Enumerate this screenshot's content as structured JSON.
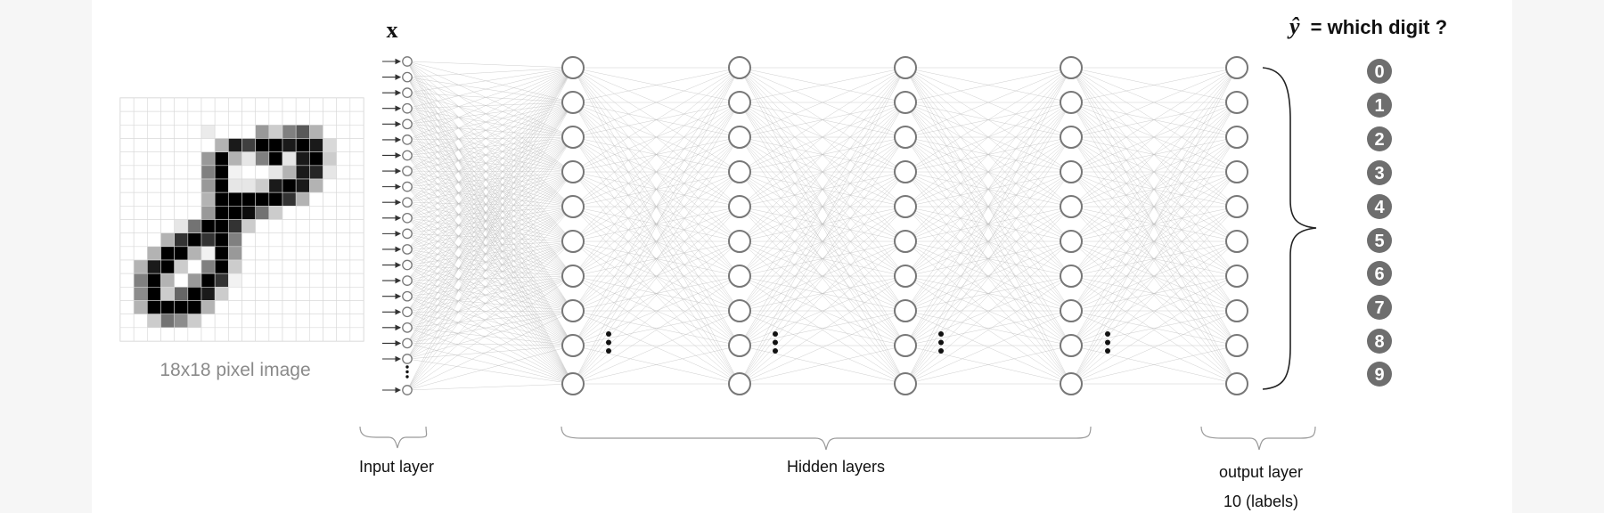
{
  "input_symbol": "x",
  "output_title": {
    "symbol": "ŷ",
    "text": "= which digit ?"
  },
  "image": {
    "caption": "18x18 pixel image",
    "grid_size": 18,
    "pixels": [
      [
        0,
        0,
        0,
        0,
        0,
        0,
        0,
        0,
        0,
        0,
        0,
        0,
        0,
        0,
        0,
        0,
        0,
        0
      ],
      [
        0,
        0,
        0,
        0,
        0,
        0,
        0,
        0,
        0,
        0,
        0,
        0,
        0,
        0,
        0,
        0,
        0,
        0
      ],
      [
        0,
        0,
        0,
        0,
        0,
        0,
        0.08,
        0,
        0,
        0,
        0.4,
        0.2,
        0.5,
        0.65,
        0.3,
        0,
        0,
        0
      ],
      [
        0,
        0,
        0,
        0,
        0,
        0,
        0,
        0.3,
        0.9,
        0.75,
        1,
        1,
        0.9,
        1,
        0.9,
        0.15,
        0,
        0
      ],
      [
        0,
        0,
        0,
        0,
        0,
        0,
        0.4,
        1,
        0.3,
        0.1,
        0.5,
        1,
        0.1,
        0.9,
        1,
        0.2,
        0,
        0
      ],
      [
        0,
        0,
        0,
        0,
        0,
        0,
        0.5,
        1,
        0.05,
        0,
        0,
        0.1,
        0.3,
        0.9,
        0.85,
        0.1,
        0,
        0
      ],
      [
        0,
        0,
        0,
        0,
        0,
        0,
        0.4,
        1,
        0.1,
        0.1,
        0.2,
        0.9,
        1,
        0.9,
        0.3,
        0,
        0,
        0
      ],
      [
        0,
        0,
        0,
        0,
        0,
        0,
        0.3,
        1,
        1,
        1,
        1,
        1,
        0.8,
        0.3,
        0,
        0,
        0,
        0
      ],
      [
        0,
        0,
        0,
        0,
        0,
        0,
        0.4,
        1,
        1,
        0.95,
        0.55,
        0.2,
        0,
        0,
        0,
        0,
        0,
        0
      ],
      [
        0,
        0,
        0,
        0,
        0.1,
        0.55,
        1,
        1,
        0.8,
        0.2,
        0,
        0,
        0,
        0,
        0,
        0,
        0,
        0
      ],
      [
        0,
        0,
        0,
        0.3,
        0.8,
        1,
        0.8,
        1,
        0.5,
        0,
        0,
        0,
        0,
        0,
        0,
        0,
        0,
        0
      ],
      [
        0,
        0,
        0.3,
        1,
        1,
        0.3,
        0.05,
        1,
        0.4,
        0,
        0,
        0,
        0,
        0,
        0,
        0,
        0,
        0
      ],
      [
        0,
        0.3,
        0.9,
        1,
        0.2,
        0,
        0.5,
        1,
        0.2,
        0,
        0,
        0,
        0,
        0,
        0,
        0,
        0,
        0
      ],
      [
        0,
        0.5,
        1,
        0.3,
        0,
        0.4,
        1,
        0.8,
        0.05,
        0,
        0,
        0,
        0,
        0,
        0,
        0,
        0,
        0
      ],
      [
        0,
        0.45,
        1,
        0.2,
        0.6,
        1,
        0.9,
        0.2,
        0,
        0,
        0,
        0,
        0,
        0,
        0,
        0,
        0,
        0
      ],
      [
        0,
        0.3,
        1,
        1,
        1,
        1,
        0.3,
        0,
        0,
        0,
        0,
        0,
        0,
        0,
        0,
        0,
        0,
        0
      ],
      [
        0,
        0,
        0.2,
        0.55,
        0.45,
        0.2,
        0,
        0,
        0,
        0,
        0,
        0,
        0,
        0,
        0,
        0,
        0,
        0
      ],
      [
        0,
        0,
        0,
        0,
        0,
        0,
        0,
        0,
        0,
        0,
        0,
        0,
        0,
        0,
        0,
        0,
        0,
        0
      ]
    ]
  },
  "layers": {
    "input_label": "Input layer",
    "hidden_label": "Hidden layers",
    "output_label": "output layer",
    "output_sublabel": "10 (labels)",
    "input_node_count": 21,
    "hidden_layer_count": 4,
    "hidden_node_count": 10,
    "output_node_count": 10
  },
  "digits": [
    "0",
    "1",
    "2",
    "3",
    "4",
    "5",
    "6",
    "7",
    "8",
    "9"
  ]
}
